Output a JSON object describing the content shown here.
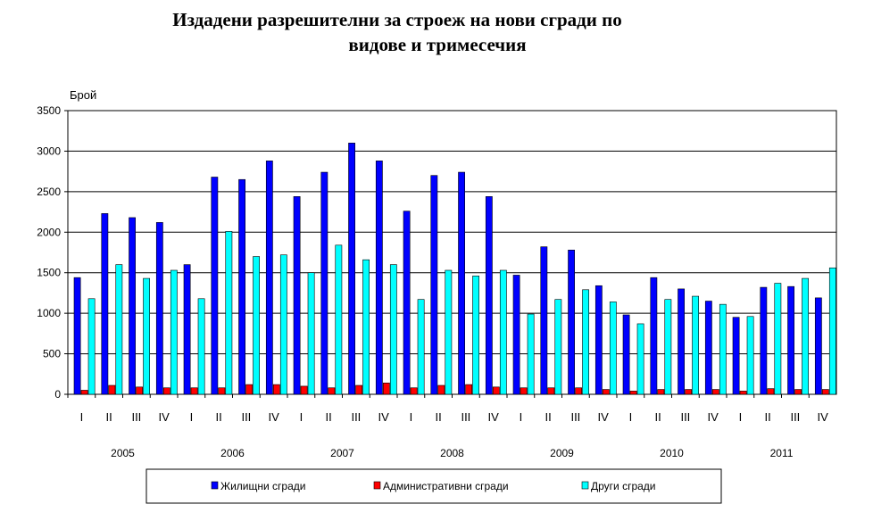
{
  "chart_data": {
    "type": "bar",
    "title_line1": "Издадени разрешителни за строеж на нови сгради по",
    "title_line2": "видове и тримесечия",
    "ylabel": "Брой",
    "ylim": [
      0,
      3500
    ],
    "yticks": [
      0,
      500,
      1000,
      1500,
      2000,
      2500,
      3000,
      3500
    ],
    "grid": true,
    "legend_position": "bottom",
    "categories": [
      "I",
      "II",
      "III",
      "IV",
      "I",
      "II",
      "III",
      "IV",
      "I",
      "II",
      "III",
      "IV",
      "I",
      "II",
      "III",
      "IV",
      "I",
      "II",
      "III",
      "IV",
      "I",
      "II",
      "III",
      "IV",
      "I",
      "II",
      "III",
      "IV"
    ],
    "years": [
      "2005",
      "2006",
      "2007",
      "2008",
      "2009",
      "2010",
      "2011"
    ],
    "series": [
      {
        "name": "Жилищни сгради",
        "color": "#0000ff",
        "values": [
          1440,
          2230,
          2180,
          2120,
          1600,
          2680,
          2650,
          2880,
          2440,
          2740,
          3100,
          2880,
          2260,
          2700,
          2740,
          2440,
          1470,
          1820,
          1780,
          1340,
          980,
          1440,
          1300,
          1150,
          950,
          1320,
          1330,
          1190
        ]
      },
      {
        "name": "Административни сгради",
        "color": "#ff0000",
        "values": [
          50,
          110,
          90,
          80,
          80,
          80,
          120,
          120,
          100,
          80,
          110,
          140,
          80,
          110,
          120,
          90,
          80,
          80,
          80,
          60,
          40,
          60,
          60,
          60,
          40,
          70,
          60,
          60
        ]
      },
      {
        "name": "Други сгради",
        "color": "#00ffff",
        "values": [
          1180,
          1600,
          1430,
          1530,
          1180,
          2010,
          1700,
          1720,
          1500,
          1840,
          1660,
          1600,
          1170,
          1530,
          1460,
          1530,
          990,
          1170,
          1290,
          1140,
          870,
          1170,
          1210,
          1110,
          960,
          1370,
          1430,
          1560
        ]
      }
    ]
  }
}
